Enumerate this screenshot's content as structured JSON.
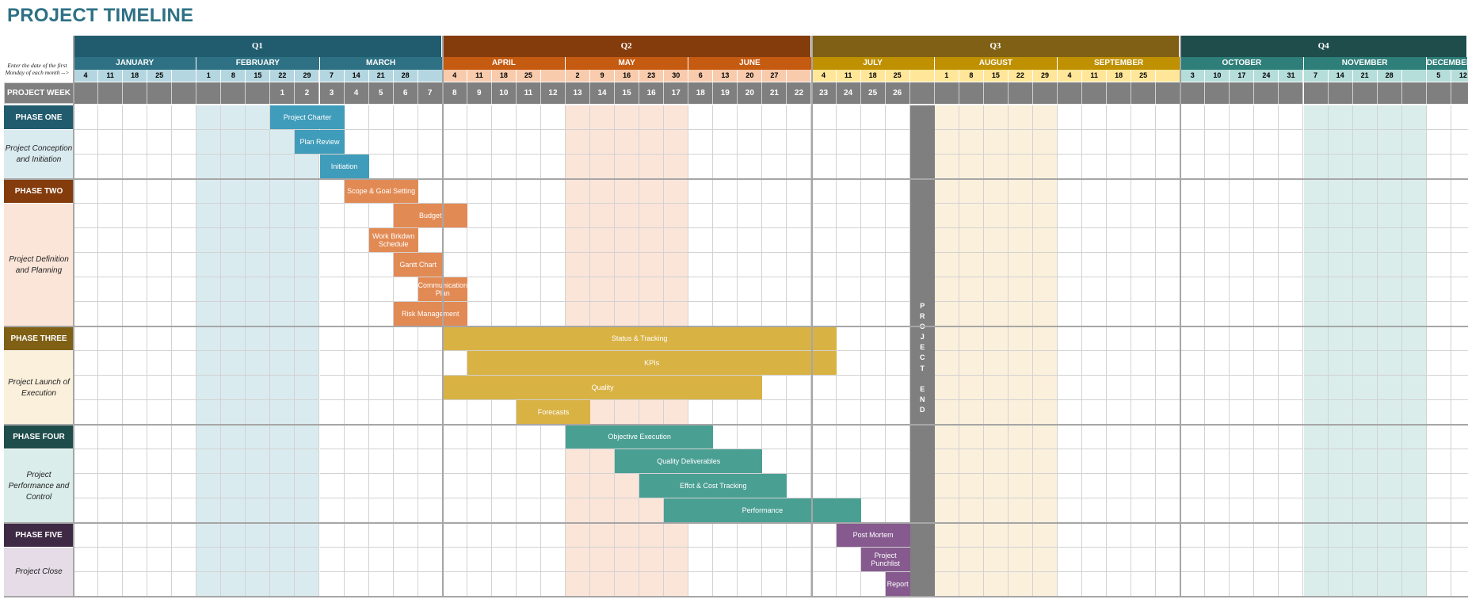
{
  "title": "PROJECT TIMELINE",
  "note": "Enter the date of the first Monday of each month -->",
  "week_header": "PROJECT WEEK",
  "project_end": "PROJECT END",
  "quarters": [
    {
      "label": "Q1",
      "color": "#215C6E"
    },
    {
      "label": "Q2",
      "color": "#843C0C"
    },
    {
      "label": "Q3",
      "color": "#7F6015"
    },
    {
      "label": "Q4",
      "color": "#1E4D4B"
    }
  ],
  "months": [
    {
      "label": "JANUARY",
      "days": [
        "4",
        "11",
        "18",
        "25",
        ""
      ],
      "bg": "#2E7184",
      "daybg": "#B4D6E0",
      "shade": "#FFFFFF"
    },
    {
      "label": "FEBRUARY",
      "days": [
        "1",
        "8",
        "15",
        "22",
        "29"
      ],
      "bg": "#2E7184",
      "daybg": "#B4D6E0",
      "shade": "#DAEBF0"
    },
    {
      "label": "MARCH",
      "days": [
        "7",
        "14",
        "21",
        "28",
        ""
      ],
      "bg": "#2E7184",
      "daybg": "#B4D6E0",
      "shade": "#FFFFFF"
    },
    {
      "label": "APRIL",
      "days": [
        "4",
        "11",
        "18",
        "25",
        ""
      ],
      "bg": "#C55A11",
      "daybg": "#F8CBAD",
      "shade": "#FFFFFF"
    },
    {
      "label": "MAY",
      "days": [
        "2",
        "9",
        "16",
        "23",
        "30"
      ],
      "bg": "#C55A11",
      "daybg": "#F8CBAD",
      "shade": "#FBE5D9"
    },
    {
      "label": "JUNE",
      "days": [
        "6",
        "13",
        "20",
        "27",
        ""
      ],
      "bg": "#C55A11",
      "daybg": "#F8CBAD",
      "shade": "#FFFFFF"
    },
    {
      "label": "JULY",
      "days": [
        "4",
        "11",
        "18",
        "25",
        ""
      ],
      "bg": "#BF9000",
      "daybg": "#FFE699",
      "shade": "#FFFFFF"
    },
    {
      "label": "AUGUST",
      "days": [
        "1",
        "8",
        "15",
        "22",
        "29"
      ],
      "bg": "#BF9000",
      "daybg": "#FFE699",
      "shade": "#FBF0DC"
    },
    {
      "label": "SEPTEMBER",
      "days": [
        "4",
        "11",
        "18",
        "25",
        ""
      ],
      "bg": "#BF9000",
      "daybg": "#FFE699",
      "shade": "#FFFFFF"
    },
    {
      "label": "OCTOBER",
      "days": [
        "3",
        "10",
        "17",
        "24",
        "31"
      ],
      "bg": "#2E7E79",
      "daybg": "#B5DDD9",
      "shade": "#FFFFFF"
    },
    {
      "label": "NOVEMBER",
      "days": [
        "7",
        "14",
        "21",
        "28",
        ""
      ],
      "bg": "#2E7E79",
      "daybg": "#B5DDD9",
      "shade": "#DAEDEA"
    },
    {
      "label": "DECEMBER",
      "days": [
        "5",
        "12",
        "",
        ""
      ],
      "bg": "#2E7E79",
      "daybg": "#B5DDD9",
      "shade": "#FFFFFF"
    }
  ],
  "project_weeks": [
    "",
    "",
    "",
    "",
    "",
    "",
    "",
    "",
    "1",
    "2",
    "3",
    "4",
    "5",
    "6",
    "7",
    "8",
    "9",
    "10",
    "11",
    "12",
    "13",
    "14",
    "15",
    "16",
    "17",
    "18",
    "19",
    "20",
    "21",
    "22",
    "23",
    "24",
    "25",
    "26"
  ],
  "phases": [
    {
      "title": "PHASE ONE",
      "desc": "Project Conception and Initiation",
      "rows": 3,
      "color": "#215C6E",
      "desc_bg": "#DAEBF0",
      "bar_color": "#3F9CBA",
      "bars": [
        {
          "label": "Project Charter",
          "start": 8,
          "span": 3
        },
        {
          "label": "Plan Review",
          "start": 9,
          "span": 2
        },
        {
          "label": "Initiation",
          "start": 10,
          "span": 2
        }
      ]
    },
    {
      "title": "PHASE TWO",
      "desc": "Project Definition and Planning",
      "rows": 6,
      "color": "#843C0C",
      "desc_bg": "#FBE5D9",
      "bar_color": "#E28A54",
      "bars": [
        {
          "label": "Scope & Goal Setting",
          "start": 11,
          "span": 3
        },
        {
          "label": "Budget",
          "start": 13,
          "span": 3
        },
        {
          "label": "Work Brkdwn Schedule",
          "start": 12,
          "span": 2
        },
        {
          "label": "Gantt Chart",
          "start": 13,
          "span": 2
        },
        {
          "label": "Communication Plan",
          "start": 14,
          "span": 2
        },
        {
          "label": "Risk Management",
          "start": 13,
          "span": 3
        }
      ]
    },
    {
      "title": "PHASE THREE",
      "desc": "Project Launch of Execution",
      "rows": 4,
      "color": "#7F6015",
      "desc_bg": "#FBF0DC",
      "bar_color": "#D9B244",
      "bars": [
        {
          "label": "Status & Tracking",
          "start": 15,
          "span": 16
        },
        {
          "label": "KPIs",
          "start": 16,
          "span": 15
        },
        {
          "label": "Quality",
          "start": 15,
          "span": 13
        },
        {
          "label": "Forecasts",
          "start": 18,
          "span": 3
        }
      ]
    },
    {
      "title": "PHASE FOUR",
      "desc": "Project Performance and Control",
      "rows": 4,
      "color": "#1E4D4B",
      "desc_bg": "#DAEDEA",
      "bar_color": "#4A9F93",
      "bars": [
        {
          "label": "Objective Execution",
          "start": 20,
          "span": 6
        },
        {
          "label": "Quality Deliverables",
          "start": 22,
          "span": 6
        },
        {
          "label": "Effot & Cost Tracking",
          "start": 23,
          "span": 6
        },
        {
          "label": "Performance",
          "start": 24,
          "span": 8
        }
      ]
    },
    {
      "title": "PHASE FIVE",
      "desc": "Project Close",
      "rows": 3,
      "color": "#3F2A45",
      "desc_bg": "#E5DCE8",
      "bar_color": "#865A8F",
      "bars": [
        {
          "label": "Post Mortem",
          "start": 31,
          "span": 3
        },
        {
          "label": "Project Punchlist",
          "start": 32,
          "span": 2
        },
        {
          "label": "Report",
          "start": 33,
          "span": 1
        }
      ]
    }
  ]
}
